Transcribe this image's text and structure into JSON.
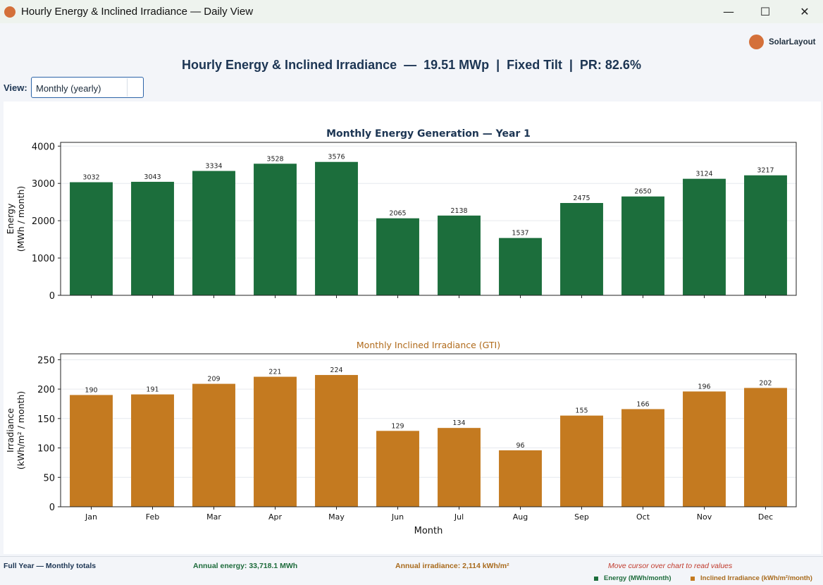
{
  "window": {
    "title": "Hourly Energy & Inclined Irradiance — Daily View",
    "controls": {
      "minimize": "—",
      "maximize": "☐",
      "close": "✕"
    }
  },
  "brand": {
    "name": "SolarLayout",
    "color": "#d4703a"
  },
  "header": {
    "title": "Hourly Energy & Inclined Irradiance  —  19.51 MWp  |  Fixed Tilt  |  PR: 82.6%"
  },
  "view": {
    "label": "View:",
    "selected": "Monthly (yearly)"
  },
  "chart_data": [
    {
      "type": "bar",
      "title": "Monthly Energy Generation — Year 1",
      "ylabel": "Energy\n(MWh / month)",
      "xlabel": "",
      "categories": [
        "Jan",
        "Feb",
        "Mar",
        "Apr",
        "May",
        "Jun",
        "Jul",
        "Aug",
        "Sep",
        "Oct",
        "Nov",
        "Dec"
      ],
      "values": [
        3032,
        3043,
        3334,
        3528,
        3576,
        2065,
        2138,
        1537,
        2475,
        2650,
        3124,
        3217
      ],
      "ylim": [
        0,
        4100
      ],
      "yticks": [
        0,
        1000,
        2000,
        3000,
        4000
      ],
      "grid": true,
      "color": "#1c6e3c",
      "title_color": "#1c3553"
    },
    {
      "type": "bar",
      "title": "Monthly Inclined Irradiance (GTI)",
      "ylabel": "Irradiance\n(kWh/m² / month)",
      "xlabel": "Month",
      "categories": [
        "Jan",
        "Feb",
        "Mar",
        "Apr",
        "May",
        "Jun",
        "Jul",
        "Aug",
        "Sep",
        "Oct",
        "Nov",
        "Dec"
      ],
      "values": [
        190,
        191,
        209,
        221,
        224,
        129,
        134,
        96,
        155,
        166,
        196,
        202
      ],
      "ylim": [
        0,
        260
      ],
      "yticks": [
        0,
        50,
        100,
        150,
        200,
        250
      ],
      "grid": true,
      "color": "#c47a20",
      "title_color": "#b06a1a"
    }
  ],
  "footer": {
    "left": "Full Year — Monthly totals",
    "annual_energy": "Annual energy: 33,718.1 MWh",
    "annual_irradiance": "Annual irradiance: 2,114 kWh/m²",
    "hint": "Move cursor over chart to read values",
    "legend_energy": "Energy (MWh/month)",
    "legend_irradiance": "Inclined Irradiance (kWh/m²/month)",
    "energy_color": "#1c6e3c",
    "irradiance_color": "#c47a20"
  }
}
